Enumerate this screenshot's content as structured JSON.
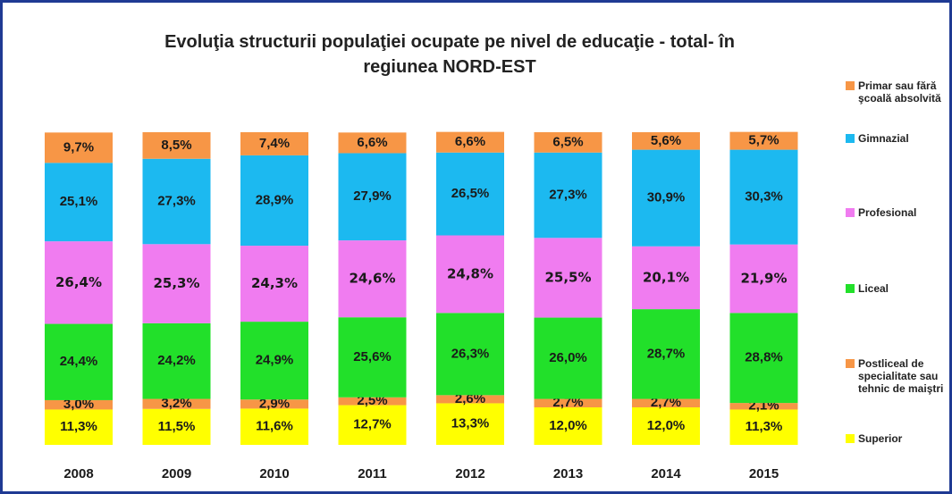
{
  "chart_data": {
    "type": "stacked_bar",
    "title": "Evoluţia structurii populaţiei ocupate pe nivel de educaţie - total- în regiunea NORD-EST",
    "categories": [
      "2008",
      "2009",
      "2010",
      "2011",
      "2012",
      "2013",
      "2014",
      "2015"
    ],
    "series": [
      {
        "name": "Superior",
        "color": "#ffff00",
        "values": [
          11.3,
          11.5,
          11.6,
          12.7,
          13.3,
          12.0,
          12.0,
          11.3
        ],
        "value_labels": [
          "11,3%",
          "11,5%",
          "11,6%",
          "12,7%",
          "13,3%",
          "12,0%",
          "12,0%",
          "11,3%"
        ]
      },
      {
        "name": "Postliceal de specialitate sau tehnic de maiştri",
        "color": "#f79646",
        "values": [
          3.0,
          3.2,
          2.9,
          2.5,
          2.6,
          2.7,
          2.7,
          2.1
        ],
        "value_labels": [
          "3,0%",
          "3,2%",
          "2,9%",
          "2,5%",
          "2,6%",
          "2,7%",
          "2,7%",
          "2,1%"
        ]
      },
      {
        "name": "Liceal",
        "color": "#22e02a",
        "values": [
          24.4,
          24.2,
          24.9,
          25.6,
          26.3,
          26.0,
          28.7,
          28.8
        ],
        "value_labels": [
          "24,4%",
          "24,2%",
          "24,9%",
          "25,6%",
          "26,3%",
          "26,0%",
          "28,7%",
          "28,8%"
        ]
      },
      {
        "name": "Profesional",
        "color": "#f07cf0",
        "values": [
          26.4,
          25.3,
          24.3,
          24.6,
          24.8,
          25.5,
          20.1,
          21.9
        ],
        "value_labels": [
          "26,4%",
          "25,3%",
          "24,3%",
          "24,6%",
          "24,8%",
          "25,5%",
          "20,1%",
          "21,9%"
        ]
      },
      {
        "name": "Gimnazial",
        "color": "#1cb9f0",
        "values": [
          25.1,
          27.3,
          28.9,
          27.9,
          26.5,
          27.3,
          30.9,
          30.3
        ],
        "value_labels": [
          "25,1%",
          "27,3%",
          "28,9%",
          "27,9%",
          "26,5%",
          "27,3%",
          "30,9%",
          "30,3%"
        ]
      },
      {
        "name": "Primar sau fără şcoală absolvită",
        "color": "#f79646",
        "values": [
          9.7,
          8.5,
          7.4,
          6.6,
          6.6,
          6.5,
          5.6,
          5.7
        ],
        "value_labels": [
          "9,7%",
          "8,5%",
          "7,4%",
          "6,6%",
          "6,6%",
          "6,5%",
          "5,6%",
          "5,7%"
        ]
      }
    ]
  }
}
